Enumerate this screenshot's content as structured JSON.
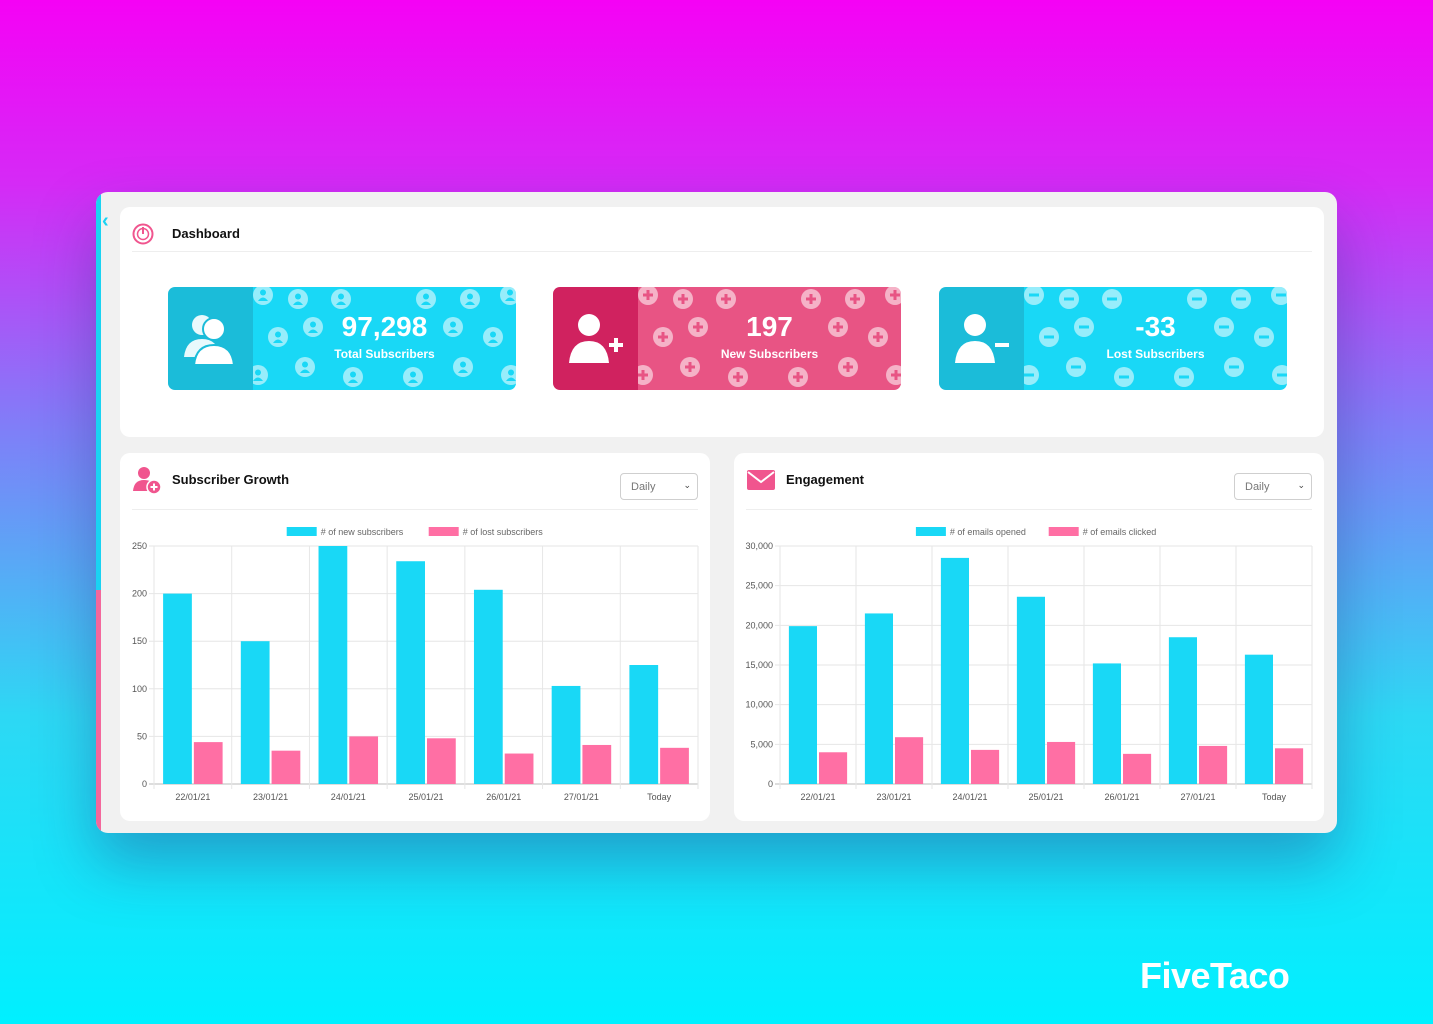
{
  "dashboard": {
    "title": "Dashboard"
  },
  "stats": {
    "total": {
      "value": "97,298",
      "label": "Total Subscribers"
    },
    "new": {
      "value": "197",
      "label": "New Subscribers"
    },
    "lost": {
      "value": "-33",
      "label": "Lost Subscribers"
    }
  },
  "growth_panel": {
    "title": "Subscriber Growth",
    "period": "Daily"
  },
  "engagement_panel": {
    "title": "Engagement",
    "period": "Daily"
  },
  "colors": {
    "cyan": "#19d8f6",
    "pink": "#ff6fa4",
    "magenta": "#d0225f"
  },
  "brand": {
    "name": "FiveTaco"
  },
  "chart_data": [
    {
      "type": "bar",
      "categories": [
        "22/01/21",
        "23/01/21",
        "24/01/21",
        "25/01/21",
        "26/01/21",
        "27/01/21",
        "Today"
      ],
      "series": [
        {
          "name": "# of new subscribers",
          "values": [
            200,
            150,
            250,
            234,
            204,
            103,
            125
          ]
        },
        {
          "name": "# of lost subscribers",
          "values": [
            44,
            35,
            50,
            48,
            32,
            41,
            38
          ]
        }
      ],
      "ylim": [
        0,
        250
      ],
      "yticks": [
        0,
        50,
        100,
        150,
        200,
        250
      ],
      "ytick_labels": [
        "0",
        "50",
        "100",
        "150",
        "200",
        "250"
      ],
      "legend": "top",
      "grid": true
    },
    {
      "type": "bar",
      "categories": [
        "22/01/21",
        "23/01/21",
        "24/01/21",
        "25/01/21",
        "26/01/21",
        "27/01/21",
        "Today"
      ],
      "series": [
        {
          "name": "# of emails opened",
          "values": [
            19900,
            21500,
            28500,
            23600,
            15200,
            18500,
            16300
          ]
        },
        {
          "name": "# of emails clicked",
          "values": [
            4000,
            5900,
            4300,
            5300,
            3800,
            4800,
            4500
          ]
        }
      ],
      "ylim": [
        0,
        30000
      ],
      "yticks": [
        0,
        5000,
        10000,
        15000,
        20000,
        25000,
        30000
      ],
      "ytick_labels": [
        "0",
        "5,000",
        "10,000",
        "15,000",
        "20,000",
        "25,000",
        "30,000"
      ],
      "legend": "top",
      "grid": true
    }
  ]
}
